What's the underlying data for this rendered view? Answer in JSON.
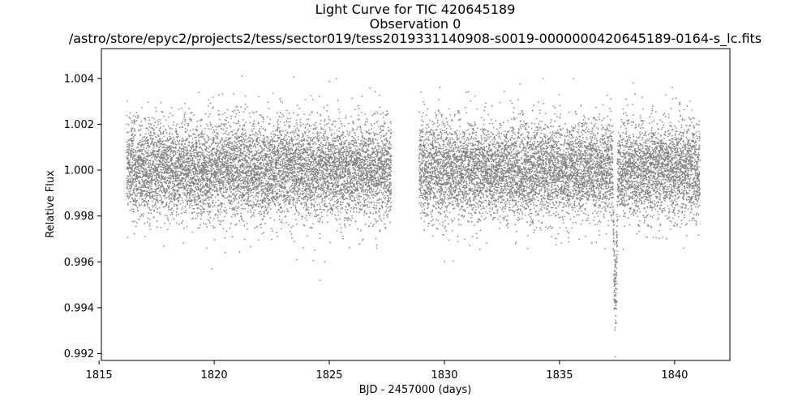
{
  "chart_data": {
    "type": "scatter",
    "title_lines": [
      "Light Curve for TIC 420645189",
      "Observation 0",
      "/astro/store/epyc2/projects2/tess/sector019/tess2019331140908-s0019-0000000420645189-0164-s_lc.fits"
    ],
    "xlabel": "BJD - 2457000 (days)",
    "ylabel": "Relative Flux",
    "xlim": [
      1815.1,
      1842.4
    ],
    "ylim": [
      0.9917,
      1.0053
    ],
    "xticks": [
      1815,
      1820,
      1825,
      1830,
      1835,
      1840
    ],
    "xtick_labels": [
      "1815",
      "1820",
      "1825",
      "1830",
      "1835",
      "1840"
    ],
    "yticks": [
      0.992,
      0.994,
      0.996,
      0.998,
      1.0,
      1.002,
      1.004
    ],
    "ytick_labels": [
      "0.992",
      "0.994",
      "0.996",
      "0.998",
      "1.000",
      "1.002",
      "1.004"
    ],
    "grid": false,
    "point_color": "#808080",
    "series": [
      {
        "segments": [
          [
            1816.2,
            1827.7
          ],
          [
            1828.9,
            1841.1
          ]
        ],
        "baseline": 1.0,
        "scatter_sd": 0.00105,
        "cadence_days": 0.00139,
        "outliers": [
          {
            "x": 1821.2,
            "y": 1.0041
          },
          {
            "x": 1819.9,
            "y": 0.9957
          },
          {
            "x": 1824.6,
            "y": 0.9952
          },
          {
            "x": 1824.8,
            "y": 0.996
          },
          {
            "x": 1825.3,
            "y": 1.004
          },
          {
            "x": 1835.6,
            "y": 1.004
          },
          {
            "x": 1834.3,
            "y": 1.004
          },
          {
            "x": 1838.2,
            "y": 1.0038
          },
          {
            "x": 1839.9,
            "y": 1.0036
          },
          {
            "x": 1840.4,
            "y": 0.9966
          },
          {
            "x": 1829.8,
            "y": 1.0036
          }
        ],
        "transit": {
          "center": 1837.42,
          "duration": 0.22,
          "depth": 0.0058
        }
      }
    ]
  }
}
